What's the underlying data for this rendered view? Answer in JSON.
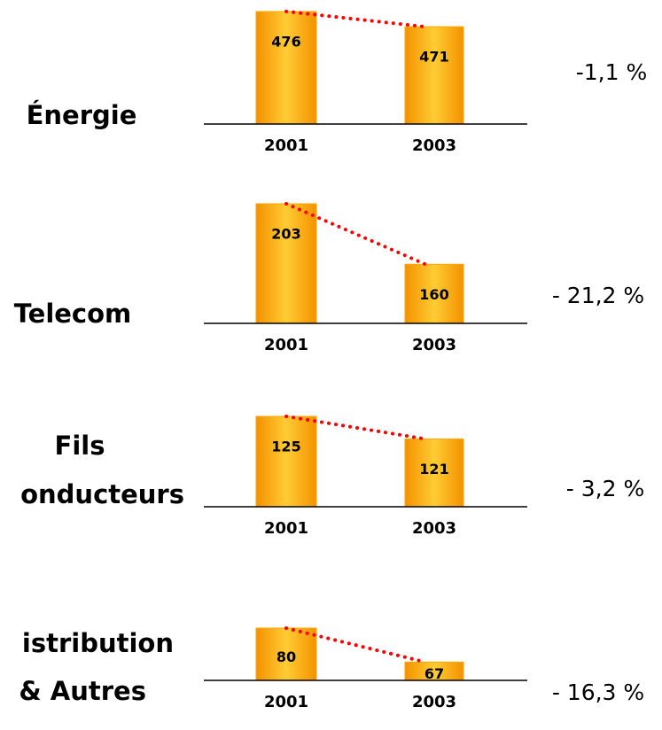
{
  "chart_data": [
    {
      "type": "bar",
      "label": [
        "Énergie"
      ],
      "categories": [
        "2001",
        "2003"
      ],
      "values": [
        476,
        471
      ],
      "change": "-1,1 %",
      "ylim": [
        439,
        476
      ],
      "color": "#ffa500",
      "trend_color": "#ff0000"
    },
    {
      "type": "bar",
      "label": [
        "Telecom"
      ],
      "categories": [
        "2001",
        "2003"
      ],
      "values": [
        203,
        160
      ],
      "change": "- 21,2 %",
      "ylim": [
        118,
        203
      ],
      "color": "#ffa500",
      "trend_color": "#ff0000"
    },
    {
      "type": "bar",
      "label": [
        "Fils",
        "onducteurs"
      ],
      "categories": [
        "2001",
        "2003"
      ],
      "values": [
        125,
        121
      ],
      "change": "- 3,2 %",
      "ylim": [
        109,
        125
      ],
      "color": "#ffa500",
      "trend_color": "#ff0000"
    },
    {
      "type": "bar",
      "label": [
        "istribution",
        "& Autres"
      ],
      "categories": [
        "2001",
        "2003"
      ],
      "values": [
        80,
        67
      ],
      "change": "- 16,3 %",
      "ylim": [
        60,
        80
      ],
      "color": "#ffa500",
      "trend_color": "#ff0000"
    }
  ]
}
